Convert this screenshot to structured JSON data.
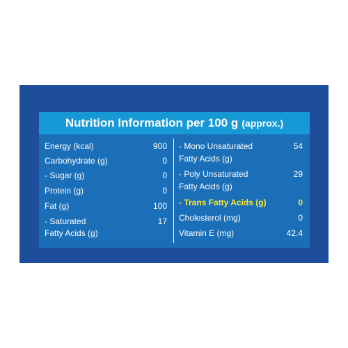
{
  "header": {
    "title": "Nutrition Information per 100 g",
    "approx": "(approx.)"
  },
  "left_column": [
    {
      "label": "Energy (kcal)",
      "value": "900"
    },
    {
      "label": "Carbohydrate (g)",
      "value": "0"
    },
    {
      "label": "- Sugar (g)",
      "value": "0"
    },
    {
      "label": "Protein (g)",
      "value": "0"
    },
    {
      "label": "Fat (g)",
      "value": "100"
    },
    {
      "label": "- Saturated",
      "label2": "Fatty Acids (g)",
      "value": "17"
    }
  ],
  "right_column": [
    {
      "label": "- Mono Unsaturated",
      "label2": "Fatty Acids (g)",
      "value": "54"
    },
    {
      "label": "- Poly Unsaturated",
      "label2": "Fatty Acids (g)",
      "value": "29"
    },
    {
      "label": "- Trans Fatty Acids (g)",
      "value": "0"
    },
    {
      "label": "Cholesterol (mg)",
      "value": "0"
    },
    {
      "label": "Vitamin E (mg)",
      "value": "42.4"
    }
  ],
  "colors": {
    "panel": "#1e4d9b",
    "header": "#1799d6",
    "table": "#1a6fb8",
    "highlight": "#ffe632"
  }
}
